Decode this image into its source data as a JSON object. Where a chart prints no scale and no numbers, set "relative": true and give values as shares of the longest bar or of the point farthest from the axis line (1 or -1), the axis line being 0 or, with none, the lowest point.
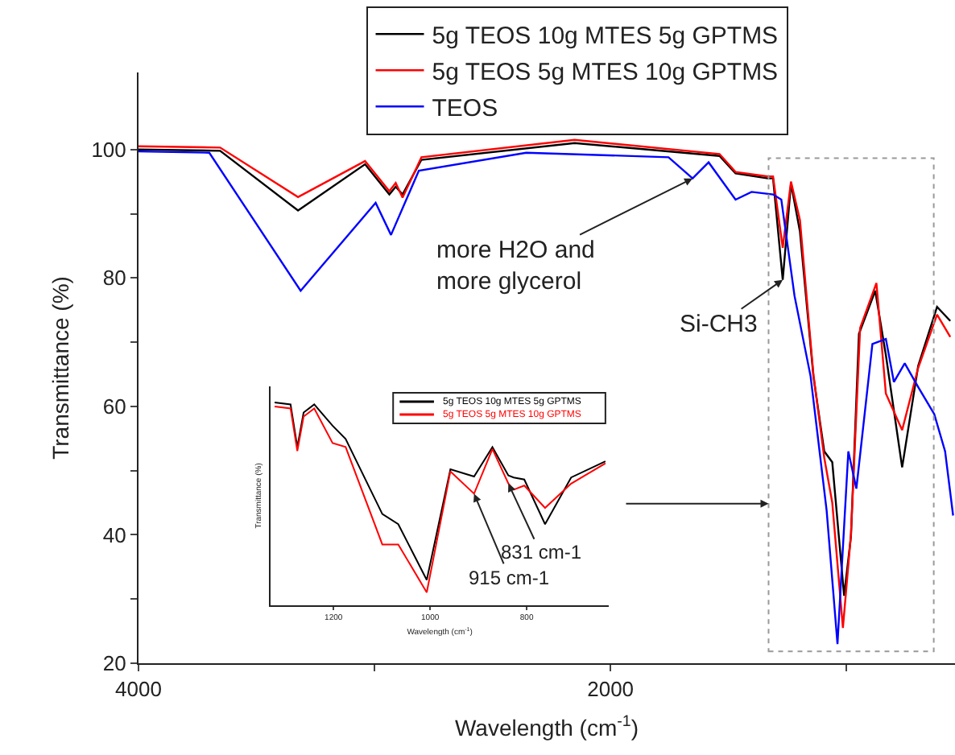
{
  "chart_data": [
    {
      "type": "line",
      "xlabel": "Wavelength (cm$^{-1}$)",
      "ylabel": "Transmittance (%)",
      "xlim": [
        4000,
        540
      ],
      "xticks": [
        4000,
        {
          "value": 3000,
          "label": null
        },
        2000,
        {
          "value": 1000,
          "label": null
        }
      ],
      "ylim": [
        20,
        112
      ],
      "yticks": [
        20,
        {
          "value": 30,
          "label": null
        },
        40,
        {
          "value": 50,
          "label": null
        },
        60,
        {
          "value": 70,
          "label": null
        },
        80,
        {
          "value": 90,
          "label": null
        },
        100
      ],
      "grid": false,
      "legend": "top",
      "marker": "none",
      "line_style": "solid",
      "series": [
        {
          "name": "5g TEOS 10g MTES 5g GPTMS",
          "color": "#000000",
          "x": [
            4000,
            3654,
            3324,
            3040,
            2937,
            2910,
            2881,
            2801,
            2152,
            1538,
            1470,
            1333,
            1311,
            1270,
            1235,
            1197,
            1140,
            1094,
            1060,
            1010,
            981,
            947,
            878,
            833,
            764,
            696,
            616,
            560
          ],
          "values": [
            100,
            99.8,
            90.5,
            97.7,
            93,
            94.2,
            93,
            98.4,
            101,
            99,
            96.3,
            95.5,
            95.5,
            79.7,
            94.7,
            87.2,
            64.7,
            53,
            51.3,
            30.5,
            39.7,
            71.3,
            78,
            68,
            50.5,
            66.3,
            75.5,
            73.3
          ]
        },
        {
          "name": "5g TEOS 5g MTES 10g GPTMS",
          "color": "#ff0000",
          "x": [
            4000,
            3654,
            3324,
            3040,
            2937,
            2910,
            2881,
            2801,
            2152,
            1538,
            1470,
            1333,
            1311,
            1270,
            1235,
            1197,
            1140,
            1094,
            1060,
            1015,
            981,
            942,
            873,
            833,
            764,
            696,
            616,
            560
          ],
          "values": [
            100.5,
            100.3,
            92.6,
            98.2,
            93.5,
            94.8,
            92.5,
            98.8,
            101.5,
            99.3,
            96.5,
            95.8,
            95.8,
            84.7,
            95,
            89,
            65,
            52,
            45,
            25.5,
            40,
            72.2,
            79.2,
            62,
            56.3,
            66,
            74.3,
            70.8
          ]
        },
        {
          "name": "TEOS",
          "color": "#0000ff",
          "x": [
            4000,
            3700,
            3313,
            2995,
            2930,
            2812,
            2357,
            1754,
            1652,
            1584,
            1470,
            1402,
            1311,
            1276,
            1220,
            1152,
            1084,
            1038,
            992,
            958,
            890,
            833,
            799,
            753,
            696,
            628,
            582,
            548
          ],
          "values": [
            99.7,
            99.5,
            78,
            91.7,
            86.7,
            96.7,
            99.5,
            98.8,
            95.5,
            98,
            92.2,
            93.4,
            93,
            92.2,
            77.2,
            64.7,
            43.8,
            23,
            53,
            47.2,
            69.7,
            70.5,
            63.8,
            66.7,
            63,
            58.8,
            53,
            43
          ]
        }
      ],
      "annotations": [
        {
          "text": "more H2O and\nmore glycerol",
          "x": 1652,
          "y": 95.5
        },
        {
          "text": "Si-CH3",
          "x": 1270,
          "y": 79.7
        }
      ]
    },
    {
      "type": "line",
      "relative": true,
      "xlabel": "Wavelength (cm$^{-1}$)",
      "ylabel": "Transmittance (%)",
      "xlim": [
        1330,
        630
      ],
      "xticks": [
        1200,
        1000,
        800
      ],
      "grid": false,
      "legend": "top right",
      "marker": "none",
      "line_style": "solid",
      "x": [
        1322,
        1289,
        1275,
        1262,
        1240,
        1202,
        1175,
        1099,
        1066,
        1007,
        958,
        909,
        871,
        838,
        827,
        805,
        762,
        708,
        637
      ],
      "series": [
        {
          "name": "5g TEOS 10g MTES 5g GPTMS",
          "color": "#000000",
          "values": [
            1.0,
            0.99,
            0.78,
            0.95,
            0.99,
            0.885,
            0.82,
            0.45,
            0.4,
            0.125,
            0.67,
            0.635,
            0.78,
            0.64,
            0.63,
            0.62,
            0.4,
            0.63,
            0.71
          ]
        },
        {
          "name": "5g TEOS 5g MTES 10g GPTMS",
          "color": "#ff0000",
          "values": [
            0.98,
            0.97,
            0.76,
            0.93,
            0.97,
            0.8,
            0.78,
            0.3,
            0.3,
            0.064,
            0.66,
            0.55,
            0.77,
            0.6,
            0.57,
            0.59,
            0.48,
            0.6,
            0.7
          ]
        }
      ],
      "annotations": [
        {
          "text": "915 cm-1",
          "x": 909,
          "y": 0.55
        },
        {
          "text": "831 cm-1",
          "x": 838,
          "y": 0.6
        }
      ]
    }
  ]
}
